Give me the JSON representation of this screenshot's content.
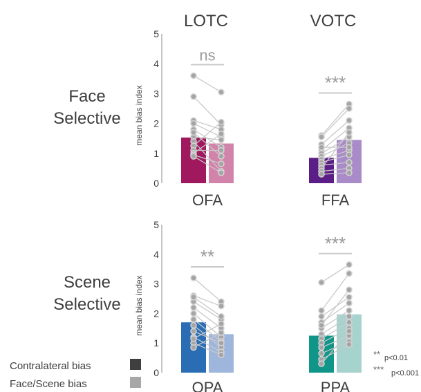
{
  "columns": {
    "left": "LOTC",
    "right": "VOTC"
  },
  "rows": {
    "top": [
      "Face",
      "Selective"
    ],
    "bottom": [
      "Scene",
      "Selective"
    ]
  },
  "legend": [
    {
      "label": "Contralateral bias",
      "color": "#3f3f3f"
    },
    {
      "label": "Face/Scene bias",
      "color": "#a7a7a7"
    }
  ],
  "significance_key": [
    {
      "stars": "**",
      "label": "p<0.01"
    },
    {
      "stars": "***",
      "label": "p<0.001"
    }
  ],
  "chart_data": [
    {
      "type": "bar",
      "region": "OFA",
      "ylabel": "mean bias index",
      "ylim": [
        0,
        5
      ],
      "yticks": [
        0,
        1,
        2,
        3,
        4,
        5
      ],
      "significance": "ns",
      "series": [
        {
          "name": "Contralateral bias",
          "mean": 1.53,
          "color": "#a0185e"
        },
        {
          "name": "Face/Scene bias",
          "mean": 1.33,
          "color": "#d283a9"
        }
      ],
      "subjects": [
        [
          3.6,
          3.05
        ],
        [
          2.9,
          1.95
        ],
        [
          2.1,
          1.8
        ],
        [
          2.0,
          1.55
        ],
        [
          1.8,
          1.2
        ],
        [
          1.55,
          1.45
        ],
        [
          1.4,
          0.4
        ],
        [
          1.25,
          2.05
        ],
        [
          1.1,
          1.1
        ],
        [
          1.0,
          1.65
        ],
        [
          0.95,
          0.65
        ],
        [
          0.9,
          0.35
        ],
        [
          1.7,
          0.9
        ]
      ]
    },
    {
      "type": "bar",
      "region": "FFA",
      "ylabel": "",
      "ylim": [
        0,
        5
      ],
      "yticks": [],
      "significance": "***",
      "series": [
        {
          "name": "Contralateral bias",
          "mean": 0.85,
          "color": "#5b1e86"
        },
        {
          "name": "Face/Scene bias",
          "mean": 1.45,
          "color": "#a98bc9"
        }
      ],
      "subjects": [
        [
          1.6,
          2.65
        ],
        [
          1.55,
          2.5
        ],
        [
          1.3,
          2.1
        ],
        [
          1.1,
          1.85
        ],
        [
          1.0,
          1.55
        ],
        [
          0.9,
          1.35
        ],
        [
          0.8,
          1.1
        ],
        [
          0.7,
          0.95
        ],
        [
          0.6,
          0.7
        ],
        [
          0.5,
          1.7
        ],
        [
          0.4,
          0.5
        ],
        [
          0.3,
          0.35
        ],
        [
          1.2,
          1.2
        ]
      ]
    },
    {
      "type": "bar",
      "region": "OPA",
      "ylabel": "mean bias index",
      "ylim": [
        0,
        5
      ],
      "yticks": [
        0,
        1,
        2,
        3,
        4,
        5
      ],
      "significance": "**",
      "series": [
        {
          "name": "Contralateral bias",
          "mean": 1.7,
          "color": "#2a6db5"
        },
        {
          "name": "Face/Scene bias",
          "mean": 1.3,
          "color": "#9fb6dc"
        }
      ],
      "subjects": [
        [
          3.2,
          2.4
        ],
        [
          2.6,
          2.25
        ],
        [
          2.4,
          1.8
        ],
        [
          2.2,
          1.5
        ],
        [
          2.0,
          1.2
        ],
        [
          1.8,
          1.05
        ],
        [
          1.6,
          0.85
        ],
        [
          1.4,
          1.0
        ],
        [
          1.2,
          0.7
        ],
        [
          1.0,
          0.6
        ],
        [
          0.85,
          1.35
        ],
        [
          2.55,
          1.9
        ],
        [
          1.15,
          1.65
        ]
      ]
    },
    {
      "type": "bar",
      "region": "PPA",
      "ylabel": "",
      "ylim": [
        0,
        5
      ],
      "yticks": [],
      "significance": "***",
      "series": [
        {
          "name": "Contralateral bias",
          "mean": 1.25,
          "color": "#0f9688"
        },
        {
          "name": "Face/Scene bias",
          "mean": 1.97,
          "color": "#a7d3cf"
        }
      ],
      "subjects": [
        [
          3.05,
          3.65
        ],
        [
          2.1,
          3.35
        ],
        [
          1.9,
          2.55
        ],
        [
          1.7,
          2.35
        ],
        [
          1.5,
          2.1
        ],
        [
          1.3,
          1.9
        ],
        [
          1.15,
          1.7
        ],
        [
          1.0,
          1.5
        ],
        [
          0.85,
          1.25
        ],
        [
          0.65,
          1.05
        ],
        [
          0.45,
          0.95
        ],
        [
          0.3,
          1.4
        ],
        [
          1.6,
          2.8
        ]
      ]
    }
  ]
}
